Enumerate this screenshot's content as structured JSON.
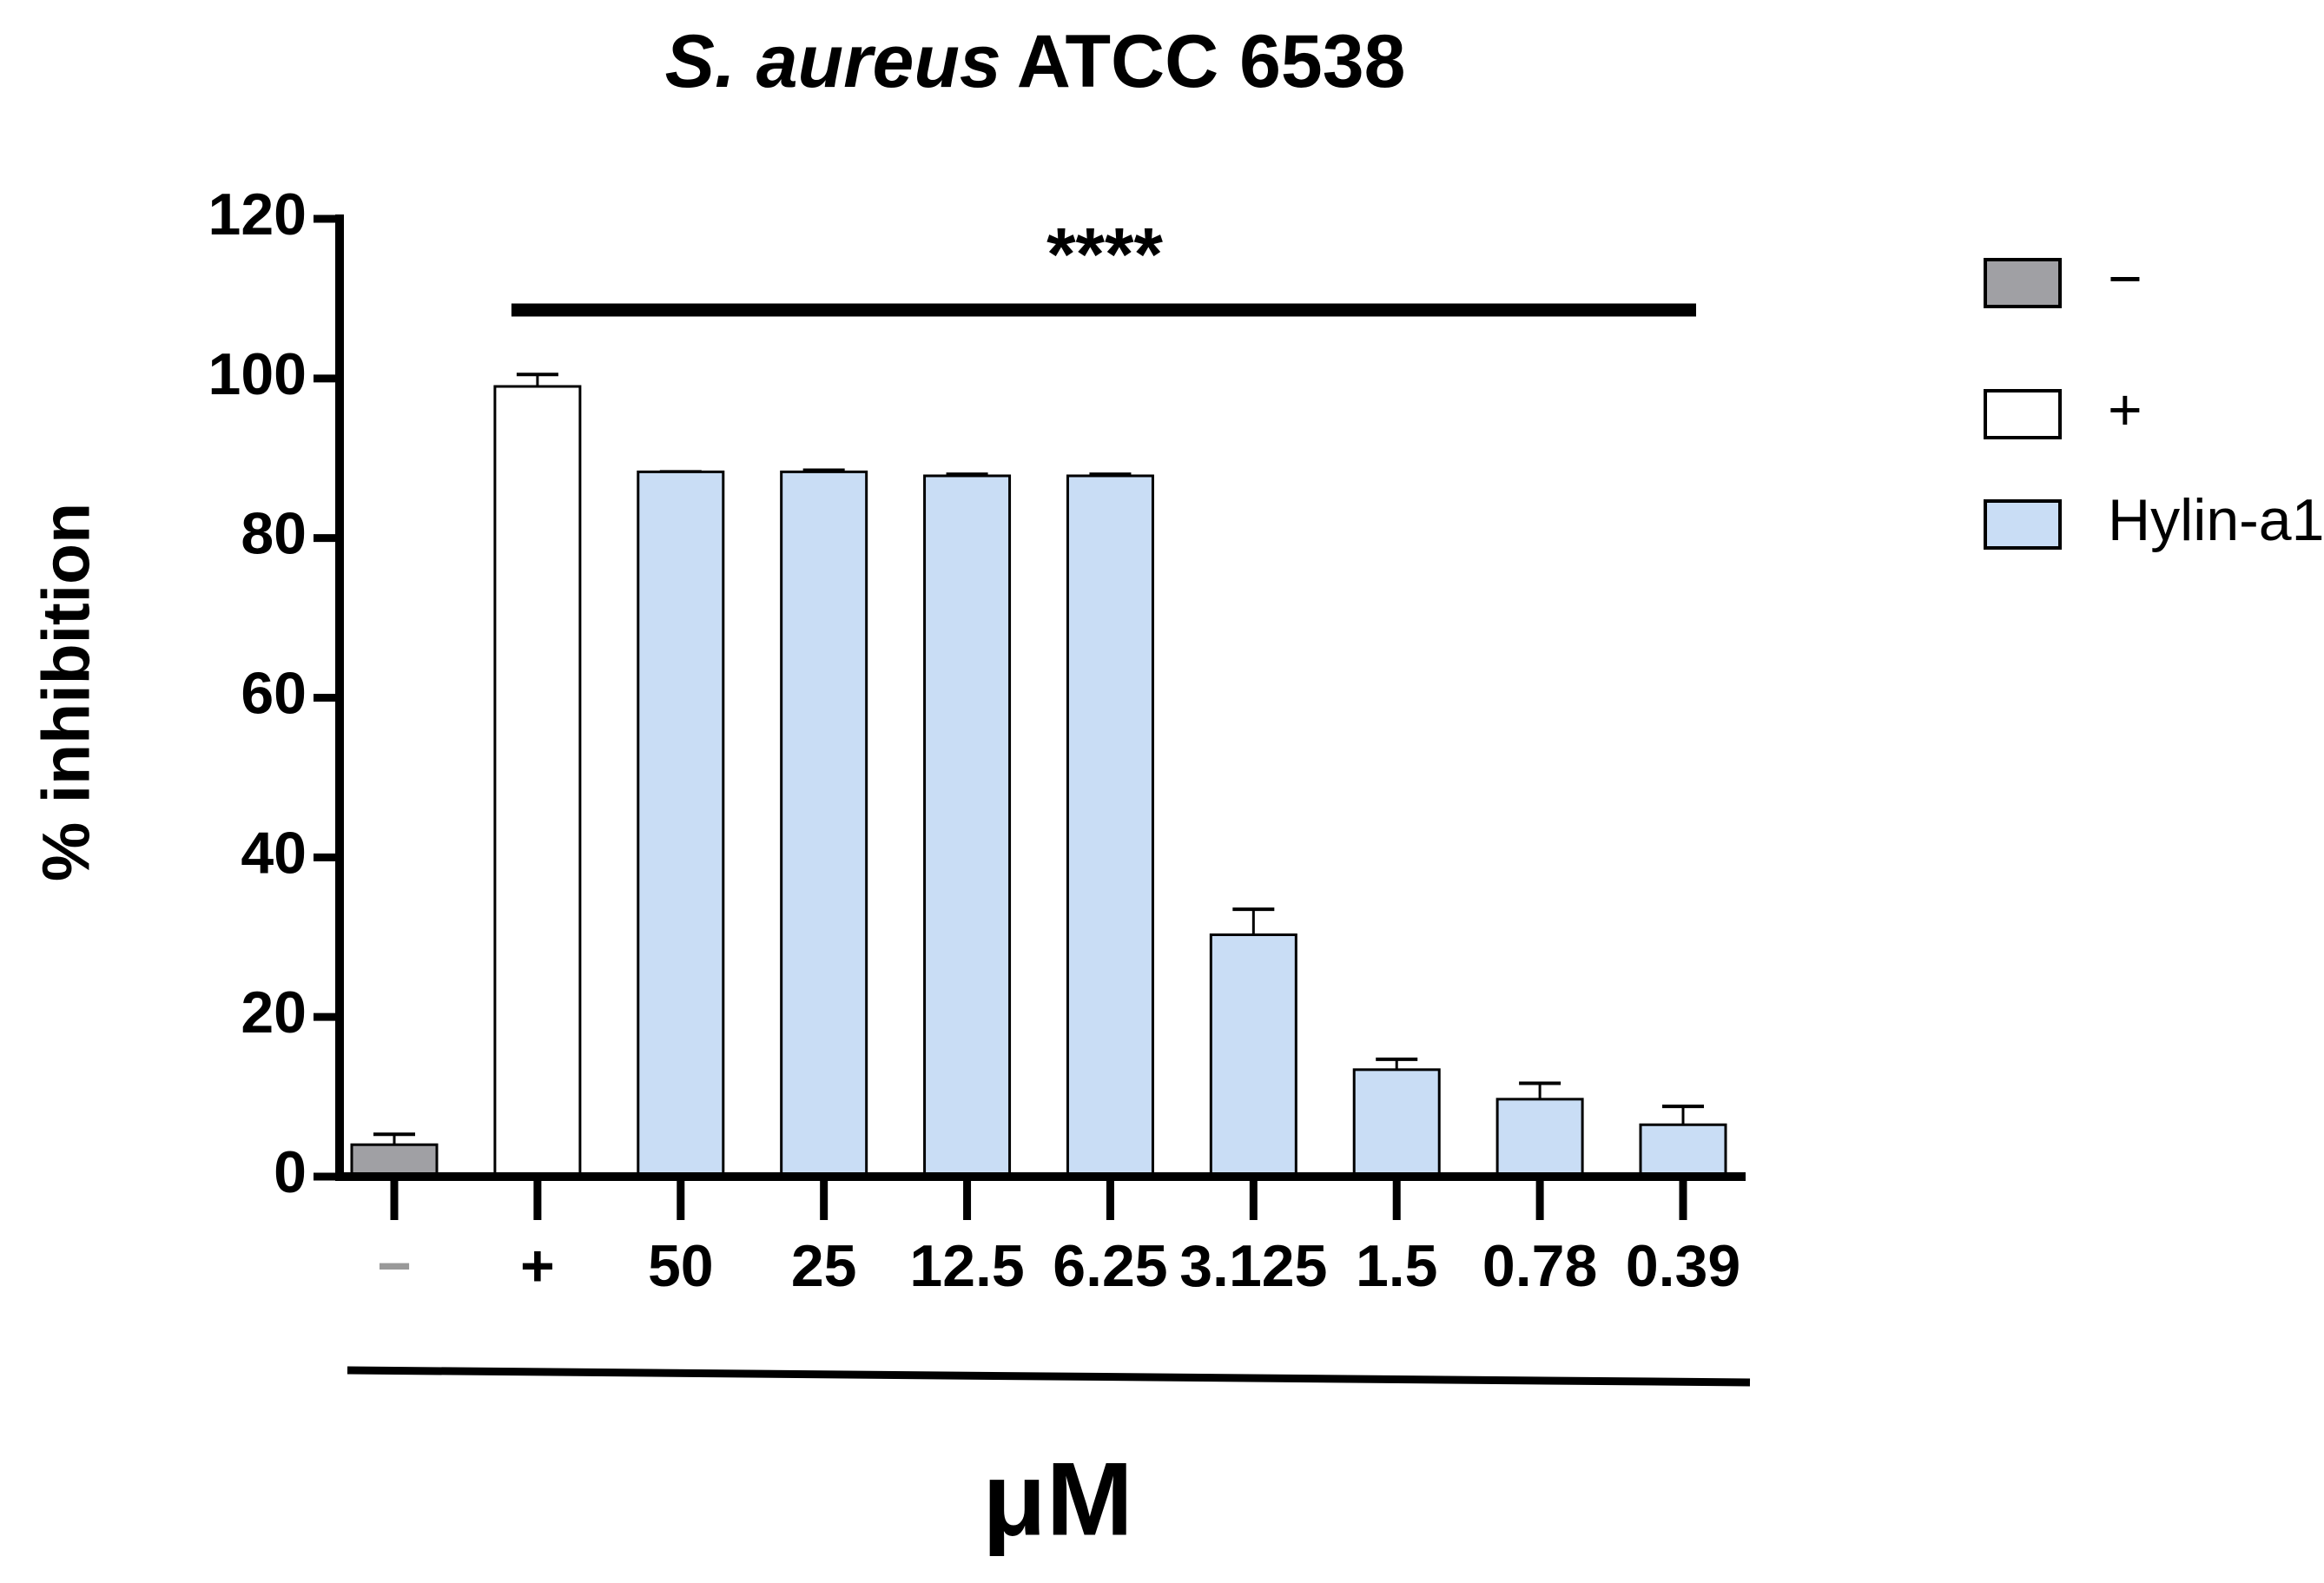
{
  "chart_data": {
    "type": "bar",
    "title": {
      "italic": "S. aureus",
      "text": "ATCC 6538"
    },
    "annotation": "****",
    "ylabel": "% inhibition",
    "xlabel": "μM",
    "categories": [
      "−",
      "+",
      "50",
      "25",
      "12.5",
      "6.25",
      "3.125",
      "1.5",
      "0.78",
      "0.39"
    ],
    "values": [
      4,
      99,
      88.3,
      88.3,
      87.8,
      87.8,
      30.3,
      13.4,
      9.7,
      6.5
    ],
    "errors": [
      1.3,
      1.5,
      0,
      0.2,
      0.2,
      0.2,
      3.2,
      1.3,
      2,
      2.3
    ],
    "colors": [
      "#a0a0a4",
      "#ffffff",
      "#c9ddf5",
      "#c9ddf5",
      "#c9ddf5",
      "#c9ddf5",
      "#c9ddf5",
      "#c9ddf5",
      "#c9ddf5",
      "#c9ddf5"
    ],
    "legend": [
      {
        "name": "−",
        "color": "#a0a0a4"
      },
      {
        "name": "+",
        "color": "#ffffff"
      },
      {
        "name": "Hylin-a1",
        "color": "#c9ddf5"
      }
    ],
    "ylim": [
      0,
      120
    ],
    "yticks": [
      0,
      20,
      40,
      60,
      80,
      100,
      120
    ]
  }
}
